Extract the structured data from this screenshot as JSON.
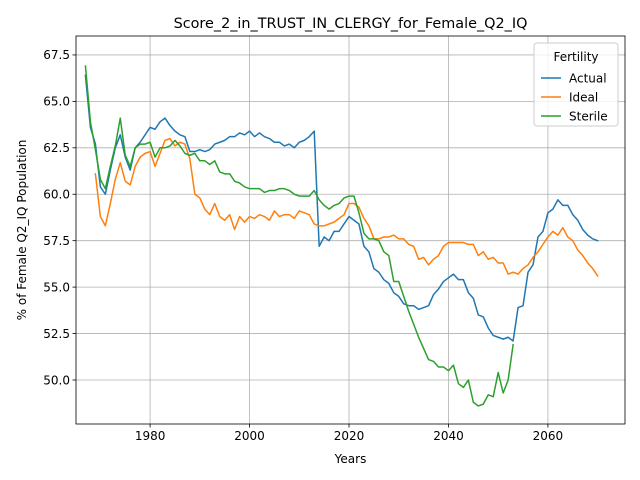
{
  "chart_data": {
    "type": "line",
    "title": "Score_2_in_TRUST_IN_CLERGY_for_Female_Q2_IQ",
    "xlabel": "Years",
    "ylabel": "% of Female Q2_IQ Population",
    "xlim": [
      1965.1,
      2075.5
    ],
    "ylim": [
      47.63,
      68.52
    ],
    "xticks": [
      1980,
      2000,
      2020,
      2040,
      2060
    ],
    "yticks": [
      50.0,
      52.5,
      55.0,
      57.5,
      60.0,
      62.5,
      65.0,
      67.5
    ],
    "xtick_labels": [
      "1980",
      "2000",
      "2020",
      "2040",
      "2060"
    ],
    "ytick_labels": [
      "50.0",
      "52.5",
      "55.0",
      "57.5",
      "60.0",
      "62.5",
      "65.0",
      "67.5"
    ],
    "grid": true,
    "legend": {
      "title": "Fertility",
      "placement": "top-right"
    },
    "series": [
      {
        "name": "Actual",
        "color": "#1f77b4",
        "x": [
          1967,
          1968,
          1969,
          1970,
          1971,
          1972,
          1973,
          1974,
          1975,
          1976,
          1977,
          1978,
          1979,
          1980,
          1981,
          1982,
          1983,
          1984,
          1985,
          1986,
          1987,
          1988,
          1989,
          1990,
          1991,
          1992,
          1993,
          1994,
          1995,
          1996,
          1997,
          1998,
          1999,
          2000,
          2001,
          2002,
          2003,
          2004,
          2005,
          2006,
          2007,
          2008,
          2009,
          2010,
          2011,
          2012,
          2013,
          2014,
          2015,
          2016,
          2017,
          2018,
          2019,
          2020,
          2021,
          2022,
          2023,
          2024,
          2025,
          2026,
          2027,
          2028,
          2029,
          2030,
          2031,
          2032,
          2033,
          2034,
          2035,
          2036,
          2037,
          2038,
          2039,
          2040,
          2041,
          2042,
          2043,
          2044,
          2045,
          2046,
          2047,
          2048,
          2049,
          2050,
          2051,
          2052,
          2053,
          2054,
          2055,
          2056,
          2057,
          2058,
          2059,
          2060,
          2061,
          2062,
          2063,
          2064,
          2065,
          2066,
          2067,
          2068,
          2069,
          2070
        ],
        "values": [
          66.4,
          63.6,
          62.7,
          60.4,
          60.0,
          61.3,
          62.5,
          63.2,
          62.0,
          61.3,
          62.5,
          62.8,
          63.2,
          63.6,
          63.5,
          63.9,
          64.1,
          63.7,
          63.4,
          63.2,
          63.1,
          62.3,
          62.3,
          62.4,
          62.3,
          62.4,
          62.7,
          62.8,
          62.9,
          63.1,
          63.1,
          63.3,
          63.2,
          63.4,
          63.1,
          63.3,
          63.1,
          63.0,
          62.8,
          62.8,
          62.6,
          62.7,
          62.5,
          62.8,
          62.9,
          63.1,
          63.4,
          57.2,
          57.7,
          57.5,
          58.0,
          58.0,
          58.4,
          58.8,
          58.6,
          58.4,
          57.2,
          56.9,
          56.0,
          55.8,
          55.4,
          55.2,
          54.7,
          54.5,
          54.1,
          54.0,
          54.0,
          53.8,
          53.9,
          54.0,
          54.6,
          54.9,
          55.3,
          55.5,
          55.7,
          55.4,
          55.4,
          54.7,
          54.4,
          53.5,
          53.4,
          52.8,
          52.4,
          52.3,
          52.2,
          52.3,
          52.1,
          53.9,
          54.0,
          55.8,
          56.2,
          57.7,
          58.0,
          59.0,
          59.2,
          59.7,
          59.4,
          59.4,
          58.9,
          58.6,
          58.1,
          57.8,
          57.6,
          57.5
        ]
      },
      {
        "name": "Ideal",
        "color": "#ff7f0e",
        "x": [
          1969,
          1970,
          1971,
          1972,
          1973,
          1974,
          1975,
          1976,
          1977,
          1978,
          1979,
          1980,
          1981,
          1982,
          1983,
          1984,
          1985,
          1986,
          1987,
          1988,
          1989,
          1990,
          1991,
          1992,
          1993,
          1994,
          1995,
          1996,
          1997,
          1998,
          1999,
          2000,
          2001,
          2002,
          2003,
          2004,
          2005,
          2006,
          2007,
          2008,
          2009,
          2010,
          2011,
          2012,
          2013,
          2014,
          2015,
          2016,
          2017,
          2018,
          2019,
          2020,
          2021,
          2022,
          2023,
          2024,
          2025,
          2026,
          2027,
          2028,
          2029,
          2030,
          2031,
          2032,
          2033,
          2034,
          2035,
          2036,
          2037,
          2038,
          2039,
          2040,
          2041,
          2042,
          2043,
          2044,
          2045,
          2046,
          2047,
          2048,
          2049,
          2050,
          2051,
          2052,
          2053,
          2054,
          2055,
          2056,
          2057,
          2058,
          2059,
          2060,
          2061,
          2062,
          2063,
          2064,
          2065,
          2066,
          2067,
          2068,
          2069,
          2070
        ],
        "values": [
          61.1,
          58.8,
          58.3,
          59.5,
          60.8,
          61.7,
          60.7,
          60.5,
          61.5,
          62.0,
          62.2,
          62.3,
          61.5,
          62.2,
          62.9,
          63.0,
          62.6,
          62.8,
          62.7,
          61.9,
          60.0,
          59.8,
          59.2,
          58.9,
          59.5,
          58.8,
          58.6,
          58.9,
          58.1,
          58.8,
          58.5,
          58.8,
          58.7,
          58.9,
          58.8,
          58.6,
          59.1,
          58.8,
          58.9,
          58.9,
          58.7,
          59.1,
          59.0,
          58.9,
          58.4,
          58.3,
          58.3,
          58.4,
          58.5,
          58.7,
          58.9,
          59.5,
          59.5,
          59.3,
          58.7,
          58.3,
          57.6,
          57.6,
          57.7,
          57.7,
          57.8,
          57.6,
          57.6,
          57.3,
          57.2,
          56.5,
          56.6,
          56.2,
          56.5,
          56.7,
          57.2,
          57.4,
          57.4,
          57.4,
          57.4,
          57.3,
          57.3,
          56.7,
          56.9,
          56.5,
          56.6,
          56.3,
          56.3,
          55.7,
          55.8,
          55.7,
          56.0,
          56.2,
          56.6,
          56.9,
          57.3,
          57.7,
          58.0,
          57.8,
          58.2,
          57.7,
          57.5,
          57.0,
          56.7,
          56.3,
          56.0,
          55.6
        ]
      },
      {
        "name": "Sterile",
        "color": "#2ca02c",
        "x": [
          1967,
          1968,
          1969,
          1970,
          1971,
          1972,
          1973,
          1974,
          1975,
          1976,
          1977,
          1978,
          1979,
          1980,
          1981,
          1982,
          1983,
          1984,
          1985,
          1986,
          1987,
          1988,
          1989,
          1990,
          1991,
          1992,
          1993,
          1994,
          1995,
          1996,
          1997,
          1998,
          1999,
          2000,
          2001,
          2002,
          2003,
          2004,
          2005,
          2006,
          2007,
          2008,
          2009,
          2010,
          2011,
          2012,
          2013,
          2014,
          2015,
          2016,
          2017,
          2018,
          2019,
          2020,
          2021,
          2022,
          2023,
          2024,
          2025,
          2026,
          2027,
          2028,
          2029,
          2030,
          2031,
          2032,
          2033,
          2034,
          2035,
          2036,
          2037,
          2038,
          2039,
          2040,
          2041,
          2042,
          2043,
          2044,
          2045,
          2046,
          2047,
          2048,
          2049,
          2050,
          2051,
          2052,
          2053
        ],
        "values": [
          66.9,
          63.9,
          62.4,
          60.8,
          60.3,
          61.5,
          62.6,
          64.1,
          62.1,
          61.5,
          62.5,
          62.7,
          62.7,
          62.8,
          62.0,
          62.5,
          62.5,
          62.6,
          62.9,
          62.6,
          62.2,
          62.1,
          62.2,
          61.8,
          61.8,
          61.6,
          61.8,
          61.2,
          61.1,
          61.1,
          60.7,
          60.6,
          60.4,
          60.3,
          60.3,
          60.3,
          60.1,
          60.2,
          60.2,
          60.3,
          60.3,
          60.2,
          60.0,
          59.9,
          59.9,
          59.9,
          60.2,
          59.7,
          59.4,
          59.2,
          59.4,
          59.5,
          59.8,
          59.9,
          59.9,
          59.0,
          57.9,
          57.6,
          57.6,
          57.5,
          56.9,
          56.7,
          55.3,
          55.3,
          54.5,
          53.7,
          53.0,
          52.3,
          51.7,
          51.1,
          51.0,
          50.7,
          50.7,
          50.5,
          50.8,
          49.8,
          49.6,
          50.0,
          48.8,
          48.6,
          48.7,
          49.2,
          49.1,
          50.4,
          49.3,
          50.0,
          51.9
        ]
      }
    ]
  }
}
